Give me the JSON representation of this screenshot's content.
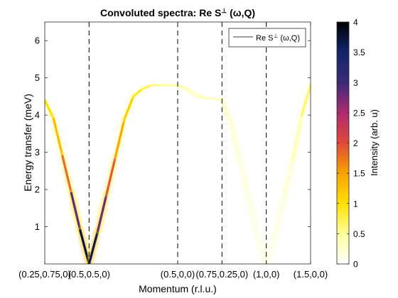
{
  "chart_data": {
    "type": "heatmap",
    "title": "Convoluted spectra: Re S",
    "title_sup": "⊥",
    "title_suffix": " (ω,Q)",
    "xlabel": "Momentum (r.l.u.)",
    "ylabel": "Energy transfer (meV)",
    "ylim": [
      0,
      6.5
    ],
    "xlim": [
      0,
      6
    ],
    "x_ticks": [
      {
        "x": 0,
        "label": "(0.25,0.75,0)"
      },
      {
        "x": 1,
        "label": "(0.5,0.5,0)"
      },
      {
        "x": 3,
        "label": "(0.5,0,0)"
      },
      {
        "x": 4,
        "label": "(0.75,0.25,0)"
      },
      {
        "x": 5,
        "label": "(1,0,0)"
      },
      {
        "x": 6,
        "label": "(1.5,0,0)"
      }
    ],
    "y_ticks": [
      1,
      2,
      3,
      4,
      5,
      6
    ],
    "vlines_dashed": [
      1,
      3,
      4,
      5
    ],
    "legend": {
      "label": "Re S",
      "label_sup": "⊥",
      "label_suffix": " (ω,Q)",
      "position": "top-right"
    },
    "colorbar": {
      "label": "Intensity (arb. u)",
      "range": [
        0,
        4
      ],
      "ticks": [
        0,
        0.5,
        1,
        1.5,
        2,
        2.5,
        3,
        3.5,
        4
      ]
    },
    "dispersion": {
      "x": [
        0,
        0.2,
        0.4,
        0.6,
        0.8,
        1.0,
        1.2,
        1.4,
        1.6,
        1.8,
        2.0,
        2.2,
        2.4,
        2.6,
        2.8,
        3.0,
        3.2,
        3.4,
        3.6,
        3.8,
        4.0,
        4.2,
        4.4,
        4.6,
        4.8,
        5.0,
        5.2,
        5.4,
        5.6,
        5.8,
        6.0
      ],
      "energy": [
        4.4,
        3.9,
        2.9,
        1.9,
        0.9,
        0.0,
        0.9,
        1.9,
        2.9,
        3.9,
        4.5,
        4.7,
        4.8,
        4.8,
        4.8,
        4.8,
        4.7,
        4.55,
        4.45,
        4.45,
        4.4,
        3.8,
        2.8,
        1.8,
        0.8,
        0.0,
        0.8,
        1.8,
        2.8,
        4.0,
        4.8
      ],
      "intensity": [
        0.8,
        1.2,
        1.4,
        2.2,
        3.5,
        4.0,
        3.3,
        2.2,
        1.6,
        1.3,
        1.0,
        0.8,
        0.6,
        0.5,
        0.45,
        0.45,
        0.4,
        0.35,
        0.35,
        0.3,
        0.3,
        0.25,
        0.15,
        0.1,
        0.08,
        0.05,
        0.08,
        0.15,
        0.3,
        0.5,
        0.8
      ]
    }
  }
}
